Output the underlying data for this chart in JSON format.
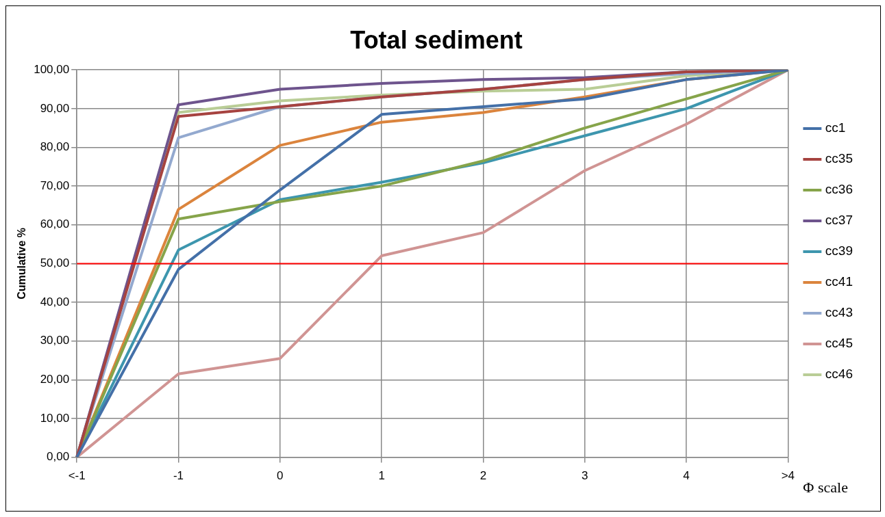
{
  "chart_data": {
    "type": "line",
    "title": "Total sediment",
    "xlabel": "Φ scale",
    "ylabel": "Cumulative %",
    "categories": [
      "<-1",
      "-1",
      "0",
      "1",
      "2",
      "3",
      "4",
      ">4"
    ],
    "series": [
      {
        "name": "cc1",
        "color": "#4470a8",
        "values": [
          0,
          48.5,
          69,
          88.5,
          90.5,
          92.5,
          97.5,
          100
        ]
      },
      {
        "name": "cc35",
        "color": "#a64340",
        "values": [
          0,
          88,
          90.5,
          93,
          95,
          97.5,
          99.5,
          100
        ]
      },
      {
        "name": "cc36",
        "color": "#86a44a",
        "values": [
          0,
          61.5,
          66,
          70,
          76.5,
          85,
          92.5,
          100
        ]
      },
      {
        "name": "cc37",
        "color": "#6e548d",
        "values": [
          0,
          91,
          95,
          96.5,
          97.5,
          98,
          99.5,
          100
        ]
      },
      {
        "name": "cc39",
        "color": "#3d96ae",
        "values": [
          0,
          53.5,
          66.5,
          71,
          76,
          83,
          90,
          100
        ]
      },
      {
        "name": "cc41",
        "color": "#db843d",
        "values": [
          0,
          64,
          80.5,
          86.5,
          89,
          93,
          97.5,
          100
        ]
      },
      {
        "name": "cc43",
        "color": "#93a9cf",
        "values": [
          0,
          82.5,
          90.5,
          93,
          95,
          97.5,
          99,
          100
        ]
      },
      {
        "name": "cc45",
        "color": "#d09493",
        "values": [
          0,
          21.5,
          25.5,
          52,
          58,
          74,
          86,
          100
        ]
      },
      {
        "name": "cc46",
        "color": "#b9cd96",
        "values": [
          0,
          89,
          92,
          93.5,
          94.5,
          95,
          98.5,
          100
        ]
      }
    ],
    "ylim": [
      0,
      100
    ],
    "yticks": [
      {
        "value": 0,
        "label": "0,00"
      },
      {
        "value": 10,
        "label": "10,00"
      },
      {
        "value": 20,
        "label": "20,00"
      },
      {
        "value": 30,
        "label": "30,00"
      },
      {
        "value": 40,
        "label": "40,00"
      },
      {
        "value": 50,
        "label": "50,00"
      },
      {
        "value": 60,
        "label": "60,00"
      },
      {
        "value": 70,
        "label": "70,00"
      },
      {
        "value": 80,
        "label": "80,00"
      },
      {
        "value": 90,
        "label": "90,00"
      },
      {
        "value": 100,
        "label": "100,00"
      }
    ],
    "ref_lines": [
      {
        "axis": "y",
        "value": 50,
        "color": "#ff0000"
      }
    ],
    "grid": true,
    "legend": "right",
    "marker": "none"
  }
}
